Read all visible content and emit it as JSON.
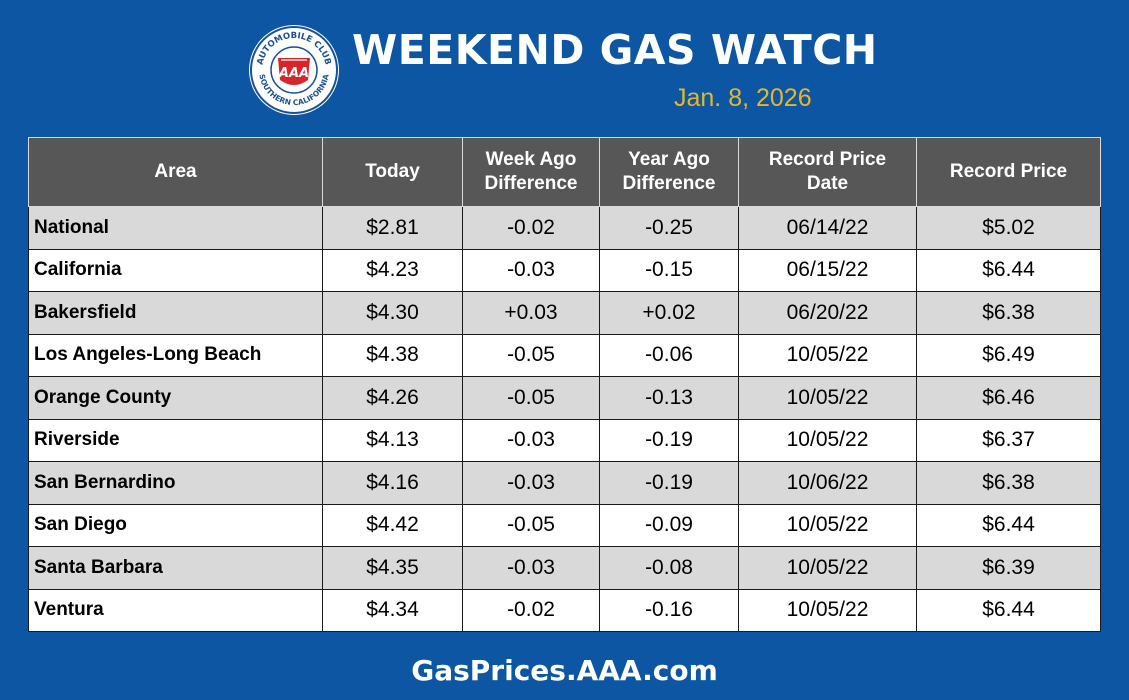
{
  "header": {
    "logo": {
      "top_text": "AUTOMOBILE CLUB",
      "bottom_text": "SOUTHERN CALIFORNIA",
      "center_text": "AAA",
      "colors": {
        "ring": "#1b4f9c",
        "badge": "#d6252b",
        "gold": "#e4b62e"
      }
    },
    "title": "WEEKEND GAS WATCH",
    "date": "Jan. 8, 2026"
  },
  "table": {
    "headers": [
      [
        "Area"
      ],
      [
        "Today"
      ],
      [
        "Week Ago",
        "Difference"
      ],
      [
        "Year Ago",
        "Difference"
      ],
      [
        "Record Price",
        "Date"
      ],
      [
        "Record Price"
      ]
    ],
    "rows": [
      [
        "National",
        "$2.81",
        "-0.02",
        "-0.25",
        "06/14/22",
        "$5.02"
      ],
      [
        "California",
        "$4.23",
        "-0.03",
        "-0.15",
        "06/15/22",
        "$6.44"
      ],
      [
        "Bakersfield",
        "$4.30",
        "+0.03",
        "+0.02",
        "06/20/22",
        "$6.38"
      ],
      [
        "Los Angeles-Long Beach",
        "$4.38",
        "-0.05",
        "-0.06",
        "10/05/22",
        "$6.49"
      ],
      [
        "Orange County",
        "$4.26",
        "-0.05",
        "-0.13",
        "10/05/22",
        "$6.46"
      ],
      [
        "Riverside",
        "$4.13",
        "-0.03",
        "-0.19",
        "10/05/22",
        "$6.37"
      ],
      [
        "San Bernardino",
        "$4.16",
        "-0.03",
        "-0.19",
        "10/06/22",
        "$6.38"
      ],
      [
        "San Diego",
        "$4.42",
        "-0.05",
        "-0.09",
        "10/05/22",
        "$6.44"
      ],
      [
        "Santa Barbara",
        "$4.35",
        "-0.03",
        "-0.08",
        "10/05/22",
        "$6.39"
      ],
      [
        "Ventura",
        "$4.34",
        "-0.02",
        "-0.16",
        "10/05/22",
        "$6.44"
      ]
    ]
  },
  "footer": {
    "url": "GasPrices.AAA.com"
  },
  "colors": {
    "background": "#0d56a3",
    "header_row": "#575757",
    "row_alt": "#d9d9d9",
    "date_text": "#e4b62e"
  }
}
